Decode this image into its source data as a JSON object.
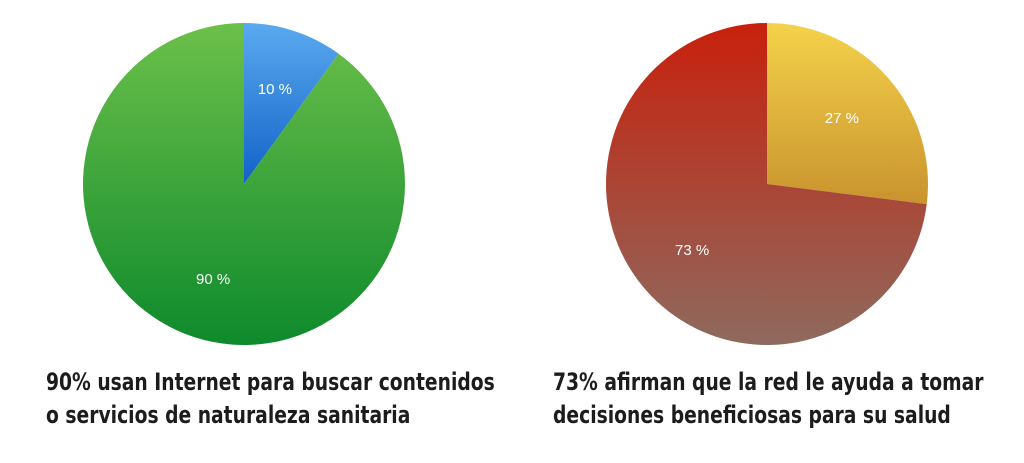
{
  "chart_data": [
    {
      "type": "pie",
      "slices": [
        {
          "label": "10 %",
          "value": 10,
          "color_start": "#5aaaf0",
          "color_end": "#1262c8"
        },
        {
          "label": "90 %",
          "value": 90,
          "color_start": "#6cc04a",
          "color_end": "#0e8a2c"
        }
      ],
      "start_angle_deg": 0,
      "caption_lines": [
        "90% usan Internet para buscar contenidos",
        "o servicios de naturaleza sanitaria"
      ]
    },
    {
      "type": "pie",
      "slices": [
        {
          "label": "27 %",
          "value": 27,
          "color_start": "#f4d24a",
          "color_end": "#c9932e"
        },
        {
          "label": "73 %",
          "value": 73,
          "color_start": "#c8200c",
          "color_end": "#8e6a5e"
        }
      ],
      "start_angle_deg": 0,
      "caption_lines": [
        "73% afirman que la red le ayuda a tomar",
        "decisiones beneficiosas para su salud"
      ]
    }
  ]
}
